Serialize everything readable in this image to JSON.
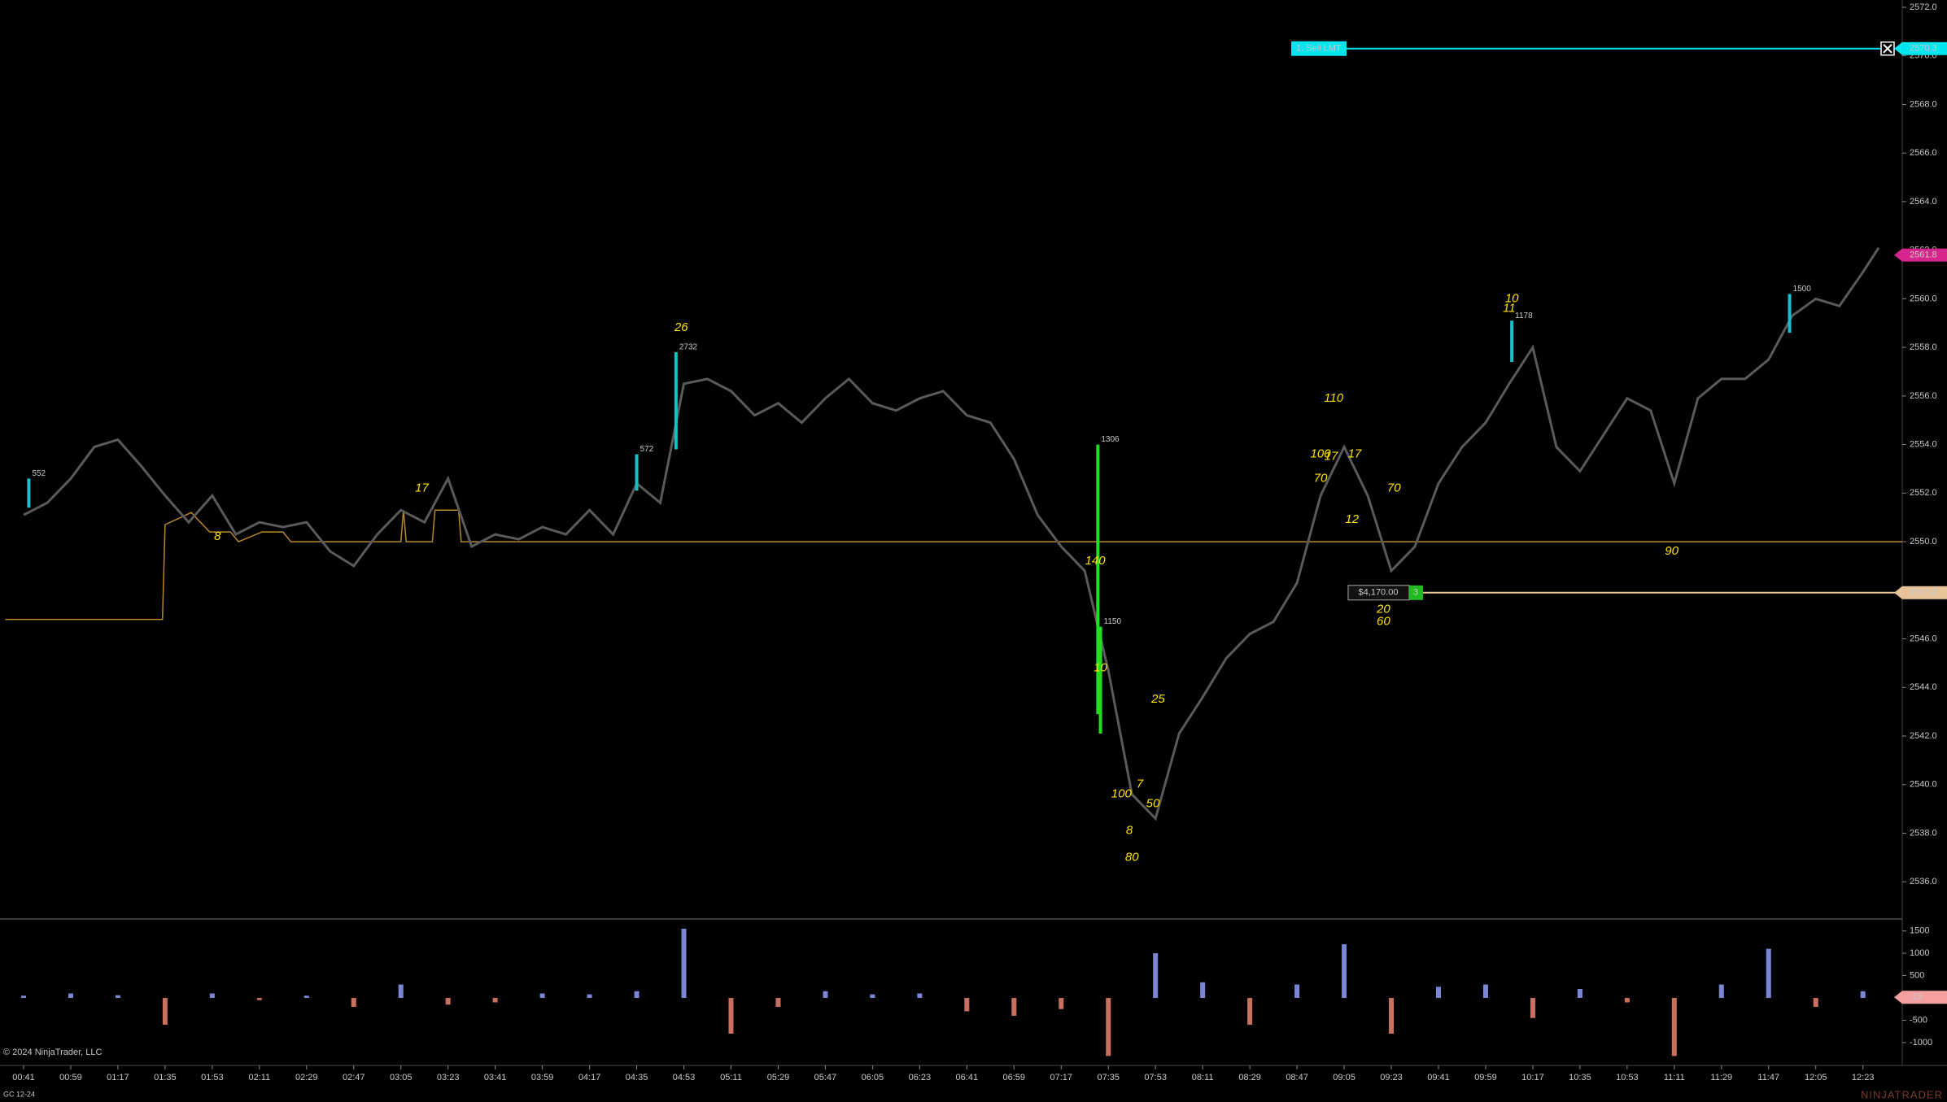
{
  "chart_data": {
    "type": "line",
    "color": "#5a5a5a",
    "xlim": [
      "00:32",
      "12:38"
    ],
    "xticks": [
      "00:41",
      "00:59",
      "01:17",
      "01:35",
      "01:53",
      "02:11",
      "02:29",
      "02:47",
      "03:05",
      "03:23",
      "03:41",
      "03:59",
      "04:17",
      "04:35",
      "04:53",
      "05:11",
      "05:29",
      "05:47",
      "06:05",
      "06:23",
      "06:41",
      "06:59",
      "07:17",
      "07:35",
      "07:53",
      "08:11",
      "08:29",
      "08:47",
      "09:05",
      "09:23",
      "09:41",
      "09:59",
      "10:17",
      "10:35",
      "10:53",
      "11:11",
      "11:29",
      "11:47",
      "12:05",
      "12:23"
    ],
    "ylim": [
      2534.5,
      2572.3
    ],
    "yticks": [
      {
        "value": 2572,
        "label": "2572.0"
      },
      {
        "value": 2570,
        "label": "2570.0"
      },
      {
        "value": 2568,
        "label": "2568.0"
      },
      {
        "value": 2566,
        "label": "2566.0"
      },
      {
        "value": 2564,
        "label": "2564.0"
      },
      {
        "value": 2562,
        "label": "2562.0"
      },
      {
        "value": 2560,
        "label": "2560.0"
      },
      {
        "value": 2558,
        "label": "2558.0"
      },
      {
        "value": 2556,
        "label": "2556.0"
      },
      {
        "value": 2554,
        "label": "2554.0"
      },
      {
        "value": 2552,
        "label": "2552.0"
      },
      {
        "value": 2550,
        "label": "2550.0"
      },
      {
        "value": 2548,
        "label": "2548.0"
      },
      {
        "value": 2546,
        "label": "2546.0"
      },
      {
        "value": 2544,
        "label": "2544.0"
      },
      {
        "value": 2542,
        "label": "2542.0"
      },
      {
        "value": 2540,
        "label": "2540.0"
      },
      {
        "value": 2538,
        "label": "2538.0"
      },
      {
        "value": 2536,
        "label": "2536.0"
      }
    ],
    "x": [
      "00:41",
      "00:50",
      "00:59",
      "01:08",
      "01:17",
      "01:26",
      "01:35",
      "01:44",
      "01:53",
      "02:02",
      "02:11",
      "02:20",
      "02:29",
      "02:38",
      "02:47",
      "02:56",
      "03:05",
      "03:14",
      "03:23",
      "03:32",
      "03:41",
      "03:50",
      "03:59",
      "04:08",
      "04:17",
      "04:26",
      "04:35",
      "04:44",
      "04:53",
      "05:02",
      "05:11",
      "05:20",
      "05:29",
      "05:38",
      "05:47",
      "05:56",
      "06:05",
      "06:14",
      "06:23",
      "06:32",
      "06:41",
      "06:50",
      "06:59",
      "07:08",
      "07:17",
      "07:26",
      "07:35",
      "07:44",
      "07:53",
      "08:02",
      "08:11",
      "08:20",
      "08:29",
      "08:38",
      "08:47",
      "08:56",
      "09:05",
      "09:14",
      "09:23",
      "09:32",
      "09:41",
      "09:50",
      "09:59",
      "10:08",
      "10:17",
      "10:26",
      "10:35",
      "10:44",
      "10:53",
      "11:02",
      "11:11",
      "11:20",
      "11:29",
      "11:38",
      "11:47",
      "11:56",
      "12:05",
      "12:14",
      "12:23",
      "12:29"
    ],
    "values": [
      2551.1,
      2551.6,
      2552.6,
      2553.9,
      2554.2,
      2553.1,
      2551.9,
      2550.8,
      2551.9,
      2550.3,
      2550.8,
      2550.6,
      2550.8,
      2549.6,
      2549.0,
      2550.3,
      2551.3,
      2550.8,
      2552.6,
      2549.8,
      2550.3,
      2550.1,
      2550.6,
      2550.3,
      2551.3,
      2550.3,
      2552.4,
      2551.6,
      2556.5,
      2556.7,
      2556.2,
      2555.2,
      2555.7,
      2554.9,
      2555.9,
      2556.7,
      2555.7,
      2555.4,
      2555.9,
      2556.2,
      2555.2,
      2554.9,
      2553.4,
      2551.1,
      2549.8,
      2548.8,
      2544.7,
      2539.6,
      2538.6,
      2542.1,
      2543.6,
      2545.2,
      2546.2,
      2546.7,
      2548.3,
      2551.9,
      2553.9,
      2551.9,
      2548.8,
      2549.8,
      2552.4,
      2553.9,
      2554.9,
      2556.5,
      2558.0,
      2553.9,
      2552.9,
      2554.4,
      2555.9,
      2555.4,
      2552.4,
      2555.9,
      2556.7,
      2556.7,
      2557.5,
      2559.3,
      2560.0,
      2559.7,
      2561.1,
      2562.1
    ],
    "level_line": {
      "color": "#b8862a",
      "x": [
        "00:34",
        "01:34",
        "01:35",
        "01:45",
        "01:52",
        "02:00",
        "02:03",
        "02:12",
        "02:20",
        "02:23",
        "03:05",
        "03:06",
        "03:07",
        "03:17",
        "03:18",
        "03:27",
        "03:28",
        "12:38"
      ],
      "values": [
        2546.8,
        2546.8,
        2550.7,
        2551.2,
        2550.4,
        2550.4,
        2550.0,
        2550.4,
        2550.4,
        2550.0,
        2550.0,
        2551.3,
        2550.0,
        2550.0,
        2551.3,
        2551.3,
        2550.0,
        2550.0
      ]
    },
    "big_trades": [
      {
        "time": "00:43",
        "high": 2552.6,
        "low": 2551.4,
        "size": 552,
        "color": "#1bbfca"
      },
      {
        "time": "04:35",
        "high": 2553.6,
        "low": 2552.1,
        "size": 572,
        "color": "#1bbfca"
      },
      {
        "time": "04:50",
        "high": 2557.8,
        "low": 2553.8,
        "size": 2732,
        "color": "#1bbfca"
      },
      {
        "time": "07:31",
        "high": 2554.0,
        "low": 2542.9,
        "size": 1306,
        "color": "#22dd22"
      },
      {
        "time": "07:32",
        "high": 2546.5,
        "low": 2542.1,
        "size": 1150,
        "color": "#22dd22"
      },
      {
        "time": "10:09",
        "high": 2559.1,
        "low": 2557.4,
        "size": 1178,
        "color": "#1bbfca"
      },
      {
        "time": "11:55",
        "high": 2560.2,
        "low": 2558.6,
        "size": 1500,
        "color": "#1bbfca"
      }
    ],
    "annotations": [
      {
        "text": "26",
        "x": "04:52",
        "y": 2558.8
      },
      {
        "text": "8",
        "x": "01:55",
        "y": 2550.2
      },
      {
        "text": "17",
        "x": "03:13",
        "y": 2552.2
      },
      {
        "text": "110",
        "x": "09:01",
        "y": 2555.9
      },
      {
        "text": "100",
        "x": "08:56",
        "y": 2553.6
      },
      {
        "text": "17",
        "x": "09:00",
        "y": 2553.5
      },
      {
        "text": "70",
        "x": "08:56",
        "y": 2552.6
      },
      {
        "text": "17",
        "x": "09:09",
        "y": 2553.6
      },
      {
        "text": "70",
        "x": "09:24",
        "y": 2552.2
      },
      {
        "text": "12",
        "x": "09:08",
        "y": 2550.9
      },
      {
        "text": "140",
        "x": "07:30",
        "y": 2549.2
      },
      {
        "text": "10",
        "x": "07:32",
        "y": 2544.8
      },
      {
        "text": "25",
        "x": "07:54",
        "y": 2543.5
      },
      {
        "text": "7",
        "x": "07:47",
        "y": 2540.0
      },
      {
        "text": "100",
        "x": "07:40",
        "y": 2539.6
      },
      {
        "text": "50",
        "x": "07:52",
        "y": 2539.2
      },
      {
        "text": "8",
        "x": "07:43",
        "y": 2538.1
      },
      {
        "text": "80",
        "x": "07:44",
        "y": 2537.0
      },
      {
        "text": "20",
        "x": "09:20",
        "y": 2547.2
      },
      {
        "text": "60",
        "x": "09:20",
        "y": 2546.7
      },
      {
        "text": "90",
        "x": "11:10",
        "y": 2549.6
      },
      {
        "text": "10",
        "x": "10:09",
        "y": 2560.0
      },
      {
        "text": "11",
        "x": "10:08",
        "y": 2559.6
      }
    ],
    "order": {
      "label": "1. Sell LMT",
      "price": {
        "value": 2570.3,
        "label": "2570.3"
      },
      "color": "#00e5ee"
    },
    "position": {
      "pnl": "$4,170.00",
      "quantity": 3,
      "price": {
        "value": 2547.9,
        "label": "2547.9"
      },
      "color": "#e8c49a"
    },
    "last_price": {
      "value": 2561.8,
      "label": "2561.8"
    },
    "last_color": "#d6258c",
    "volume": {
      "ylim": [
        -1420,
        1730
      ],
      "yticks": [
        1500,
        1000,
        500,
        -500,
        -1000
      ],
      "up_color": "#7b86d6",
      "down_color": "#c9705f",
      "x": [
        "00:41",
        "00:59",
        "01:17",
        "01:35",
        "01:53",
        "02:11",
        "02:29",
        "02:47",
        "03:05",
        "03:23",
        "03:41",
        "03:59",
        "04:17",
        "04:35",
        "04:53",
        "05:11",
        "05:29",
        "05:47",
        "06:05",
        "06:23",
        "06:41",
        "06:59",
        "07:17",
        "07:35",
        "07:53",
        "08:11",
        "08:29",
        "08:47",
        "09:05",
        "09:23",
        "09:41",
        "09:59",
        "10:17",
        "10:35",
        "10:53",
        "11:11",
        "11:29",
        "11:47",
        "12:05",
        "12:23"
      ],
      "values": [
        50,
        100,
        60,
        -600,
        100,
        -50,
        50,
        -200,
        300,
        -150,
        -100,
        100,
        80,
        150,
        1550,
        -800,
        -200,
        150,
        80,
        100,
        -300,
        -400,
        -250,
        -1300,
        1000,
        350,
        -600,
        300,
        1200,
        -800,
        250,
        300,
        -450,
        200,
        -100,
        -1300,
        300,
        1100,
        -200,
        150
      ],
      "marker": 13
    },
    "copyright": "© 2024 NinjaTrader, LLC",
    "instrument": "GC 12-24",
    "brand": "NINJATRADER"
  }
}
